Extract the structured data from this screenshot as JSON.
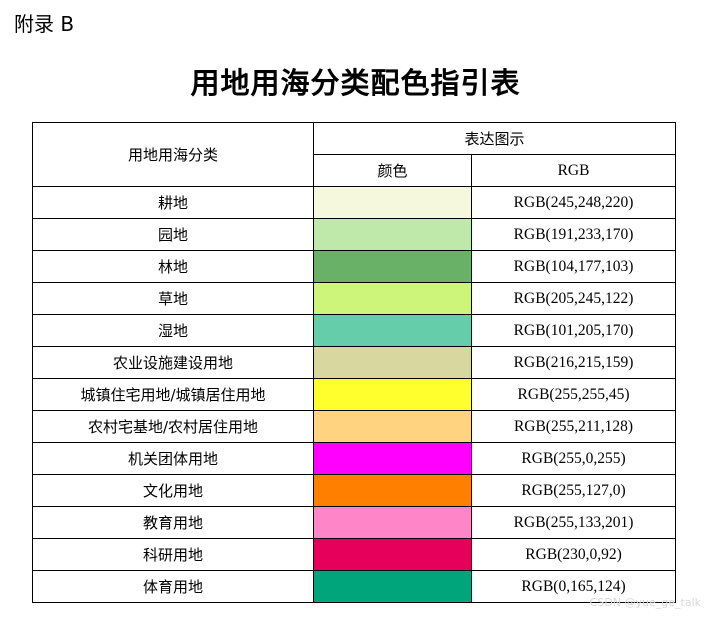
{
  "appendix_label": "附录 B",
  "title": "用地用海分类配色指引表",
  "table": {
    "header_category": "用地用海分类",
    "header_expression": "表达图示",
    "header_color": "颜色",
    "header_rgb": "RGB",
    "rows": [
      {
        "category": "耕地",
        "rgb": "RGB(245,248,220)",
        "color": "#f5f8dc"
      },
      {
        "category": "园地",
        "rgb": "RGB(191,233,170)",
        "color": "#bfe9aa"
      },
      {
        "category": "林地",
        "rgb": "RGB(104,177,103)",
        "color": "#68b167"
      },
      {
        "category": "草地",
        "rgb": "RGB(205,245,122)",
        "color": "#cdf57a"
      },
      {
        "category": "湿地",
        "rgb": "RGB(101,205,170)",
        "color": "#65cdaa"
      },
      {
        "category": "农业设施建设用地",
        "rgb": "RGB(216,215,159)",
        "color": "#d8d79f"
      },
      {
        "category": "城镇住宅用地/城镇居住用地",
        "rgb": "RGB(255,255,45)",
        "color": "#ffff2d"
      },
      {
        "category": "农村宅基地/农村居住用地",
        "rgb": "RGB(255,211,128)",
        "color": "#ffd380"
      },
      {
        "category": "机关团体用地",
        "rgb": "RGB(255,0,255)",
        "color": "#ff00ff"
      },
      {
        "category": "文化用地",
        "rgb": "RGB(255,127,0)",
        "color": "#ff7f00"
      },
      {
        "category": "教育用地",
        "rgb": "RGB(255,133,201)",
        "color": "#ff85c9"
      },
      {
        "category": "科研用地",
        "rgb": "RGB(230,0,92)",
        "color": "#e6005c"
      },
      {
        "category": "体育用地",
        "rgb": "RGB(0,165,124)",
        "color": "#00a57c"
      }
    ]
  },
  "watermark": "CSDN @yue_ge_talk"
}
